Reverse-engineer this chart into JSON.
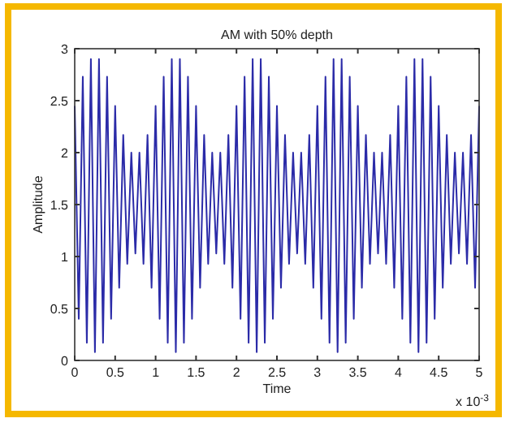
{
  "chart_data": {
    "type": "line",
    "title": "AM with 50% depth",
    "xlabel": "Time",
    "ylabel": "Amplitude",
    "annotations": [
      "x 10$^{-3}$"
    ],
    "xlim": [
      0,
      5
    ],
    "xticks": [
      0,
      0.5,
      1,
      1.5,
      2,
      2.5,
      3,
      3.5,
      4,
      4.5,
      5
    ],
    "ylim": [
      0,
      3
    ],
    "yticks": [
      0,
      0.5,
      1,
      1.5,
      2,
      2.5,
      3
    ],
    "grid": false,
    "marker": "none",
    "line_style": "solid",
    "series": [
      {
        "color": "#2b2ba8",
        "x": [
          0,
          0.05,
          0.1,
          0.15,
          0.2,
          0.25,
          0.3,
          0.35,
          0.4,
          0.45,
          0.5,
          0.55,
          0.6,
          0.65,
          0.7,
          0.75,
          0.8,
          0.85,
          0.9,
          0.95,
          1,
          1.05,
          1.1,
          1.15,
          1.2,
          1.25,
          1.3,
          1.35,
          1.4,
          1.45,
          1.5,
          1.55,
          1.6,
          1.65,
          1.7,
          1.75,
          1.8,
          1.85,
          1.9,
          1.95,
          2,
          2.05,
          2.1,
          2.15,
          2.2,
          2.25,
          2.3,
          2.35,
          2.4,
          2.45,
          2.5,
          2.55,
          2.6,
          2.65,
          2.7,
          2.75,
          2.8,
          2.85,
          2.9,
          2.95,
          3,
          3.05,
          3.1,
          3.15,
          3.2,
          3.25,
          3.3,
          3.35,
          3.4,
          3.45,
          3.5,
          3.55,
          3.6,
          3.65,
          3.7,
          3.75,
          3.8,
          3.85,
          3.9,
          3.95,
          4,
          4.05,
          4.1,
          4.15,
          4.2,
          4.25,
          4.3,
          4.35,
          4.4,
          4.45,
          4.5,
          4.55,
          4.6,
          4.65,
          4.7,
          4.75,
          4.8,
          4.85,
          4.9,
          4.95,
          5
        ],
        "values": [
          2.45,
          0.4,
          2.73,
          0.17,
          2.9,
          0.08,
          2.9,
          0.17,
          2.73,
          0.4,
          2.45,
          0.7,
          2.17,
          0.93,
          2.0,
          1.03,
          2.0,
          0.93,
          2.17,
          0.7,
          2.45,
          0.4,
          2.73,
          0.17,
          2.9,
          0.08,
          2.9,
          0.17,
          2.73,
          0.4,
          2.45,
          0.7,
          2.17,
          0.93,
          2.0,
          1.03,
          2.0,
          0.93,
          2.17,
          0.7,
          2.45,
          0.4,
          2.73,
          0.17,
          2.9,
          0.08,
          2.9,
          0.17,
          2.73,
          0.4,
          2.45,
          0.7,
          2.17,
          0.93,
          2.0,
          1.03,
          2.0,
          0.93,
          2.17,
          0.7,
          2.45,
          0.4,
          2.73,
          0.17,
          2.9,
          0.08,
          2.9,
          0.17,
          2.73,
          0.4,
          2.45,
          0.7,
          2.17,
          0.93,
          2.0,
          1.03,
          2.0,
          0.93,
          2.17,
          0.7,
          2.45,
          0.4,
          2.73,
          0.17,
          2.9,
          0.08,
          2.9,
          0.17,
          2.73,
          0.4,
          2.45,
          0.7,
          2.17,
          0.93,
          2.0,
          1.03,
          2.0,
          0.93,
          2.17,
          0.7,
          2.45
        ]
      }
    ]
  }
}
